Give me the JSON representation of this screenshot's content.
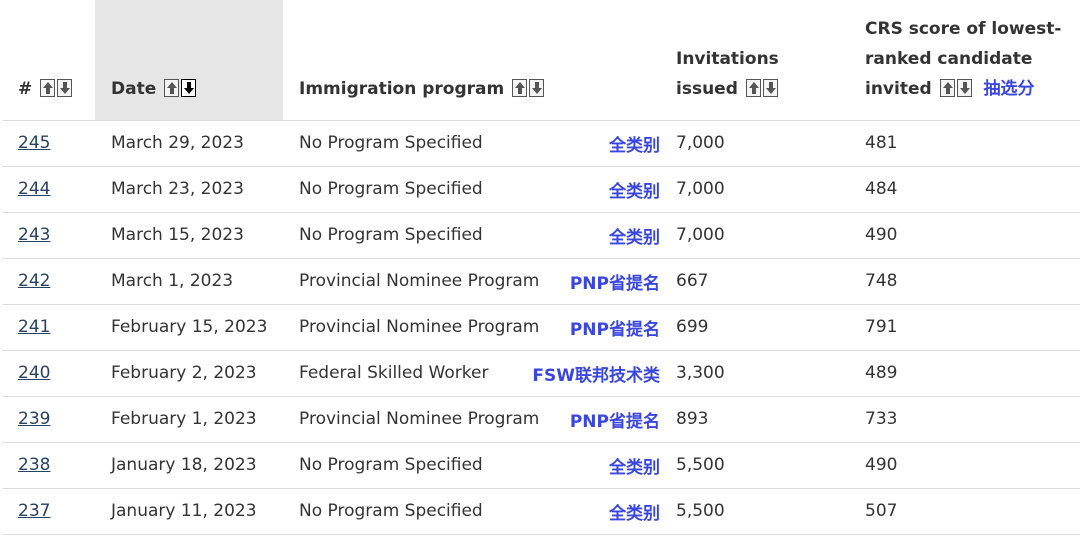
{
  "headers": {
    "num": "#",
    "date": "Date",
    "program": "Immigration program",
    "invitations_line1": "Invitations",
    "invitations_line2": "issued",
    "crs_line1": "CRS score of lowest-",
    "crs_line2": "ranked candidate",
    "crs_line3": "invited",
    "crs_cn": "抽选分"
  },
  "colors": {
    "link": "#284162",
    "cn_annotation": "#3a46e0",
    "sorted_header_bg": "#e6e6e6"
  },
  "rows": [
    {
      "num": "245",
      "date": "March 29, 2023",
      "program": "No Program Specified",
      "cn": "全类别",
      "invitations": "7,000",
      "crs": "481"
    },
    {
      "num": "244",
      "date": "March 23, 2023",
      "program": "No Program Specified",
      "cn": "全类别",
      "invitations": "7,000",
      "crs": "484"
    },
    {
      "num": "243",
      "date": "March 15, 2023",
      "program": "No Program Specified",
      "cn": "全类别",
      "invitations": "7,000",
      "crs": "490"
    },
    {
      "num": "242",
      "date": "March 1, 2023",
      "program": "Provincial Nominee Program",
      "cn": "PNP省提名",
      "invitations": "667",
      "crs": "748"
    },
    {
      "num": "241",
      "date": "February 15, 2023",
      "program": "Provincial Nominee Program",
      "cn": "PNP省提名",
      "invitations": "699",
      "crs": "791"
    },
    {
      "num": "240",
      "date": "February 2, 2023",
      "program": "Federal Skilled Worker",
      "cn": "FSW联邦技术类",
      "invitations": "3,300",
      "crs": "489"
    },
    {
      "num": "239",
      "date": "February 1, 2023",
      "program": "Provincial Nominee Program",
      "cn": "PNP省提名",
      "invitations": "893",
      "crs": "733"
    },
    {
      "num": "238",
      "date": "January 18, 2023",
      "program": "No Program Specified",
      "cn": "全类别",
      "invitations": "5,500",
      "crs": "490"
    },
    {
      "num": "237",
      "date": "January 11, 2023",
      "program": "No Program Specified",
      "cn": "全类别",
      "invitations": "5,500",
      "crs": "507"
    }
  ]
}
